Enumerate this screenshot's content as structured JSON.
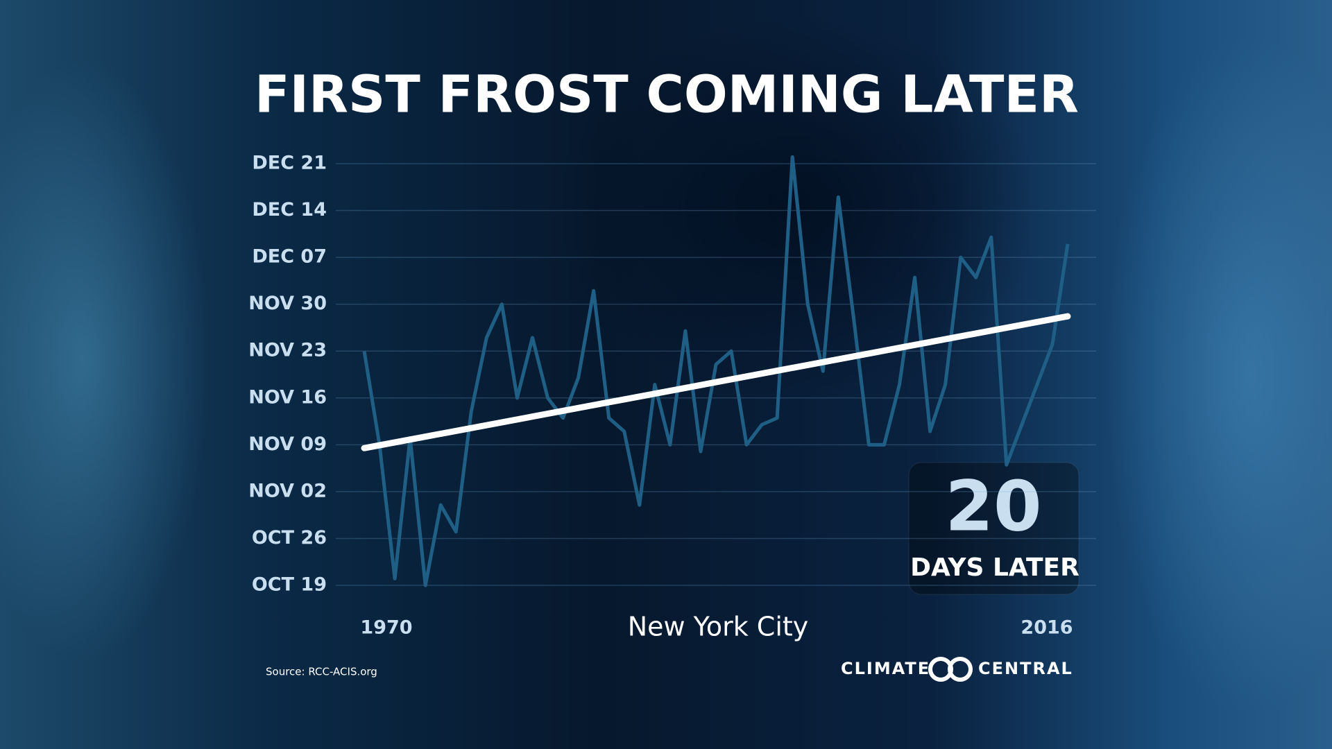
{
  "chart_data": {
    "type": "line",
    "title": "FIRST FROST COMING LATER",
    "subtitle": "New York City",
    "x": [
      1970,
      1971,
      1972,
      1973,
      1974,
      1975,
      1976,
      1977,
      1978,
      1979,
      1980,
      1981,
      1982,
      1983,
      1984,
      1985,
      1986,
      1987,
      1988,
      1989,
      1990,
      1991,
      1992,
      1993,
      1994,
      1995,
      1996,
      1997,
      1998,
      1999,
      2000,
      2001,
      2002,
      2003,
      2004,
      2005,
      2006,
      2007,
      2008,
      2009,
      2010,
      2011,
      2012,
      2013,
      2014,
      2015,
      2016
    ],
    "series": [
      {
        "color": "#1f5f85",
        "values": [
          327,
          313,
          293,
          314,
          292,
          304,
          300,
          318,
          329,
          334,
          320,
          329,
          320,
          317,
          323,
          336,
          317,
          315,
          304,
          322,
          313,
          330,
          312,
          325,
          327,
          313,
          316,
          317,
          356,
          334,
          324,
          350,
          332,
          313,
          313,
          322,
          338,
          315,
          322,
          341,
          338,
          344,
          310,
          316,
          322,
          328,
          343
        ]
      }
    ],
    "trend": {
      "color": "#ffffff",
      "x": [
        1970,
        2016
      ],
      "values": [
        312.5,
        332.2
      ]
    },
    "xlim": [
      1970,
      2016
    ],
    "xticks": [
      1970,
      2016
    ],
    "ylim": [
      292,
      355
    ],
    "yticks": [
      {
        "value": 292,
        "label": "OCT 19"
      },
      {
        "value": 299,
        "label": "OCT 26"
      },
      {
        "value": 306,
        "label": "NOV 02"
      },
      {
        "value": 313,
        "label": "NOV 09"
      },
      {
        "value": 320,
        "label": "NOV 16"
      },
      {
        "value": 327,
        "label": "NOV 23"
      },
      {
        "value": 334,
        "label": "NOV 30"
      },
      {
        "value": 341,
        "label": "DEC 07"
      },
      {
        "value": 348,
        "label": "DEC 14"
      },
      {
        "value": 355,
        "label": "DEC 21"
      }
    ],
    "grid": true,
    "callout": {
      "value": 20,
      "text": "DAYS LATER"
    },
    "source": "Source: RCC-ACIS.org",
    "brand": [
      "CLIMATE",
      "CENTRAL"
    ]
  }
}
